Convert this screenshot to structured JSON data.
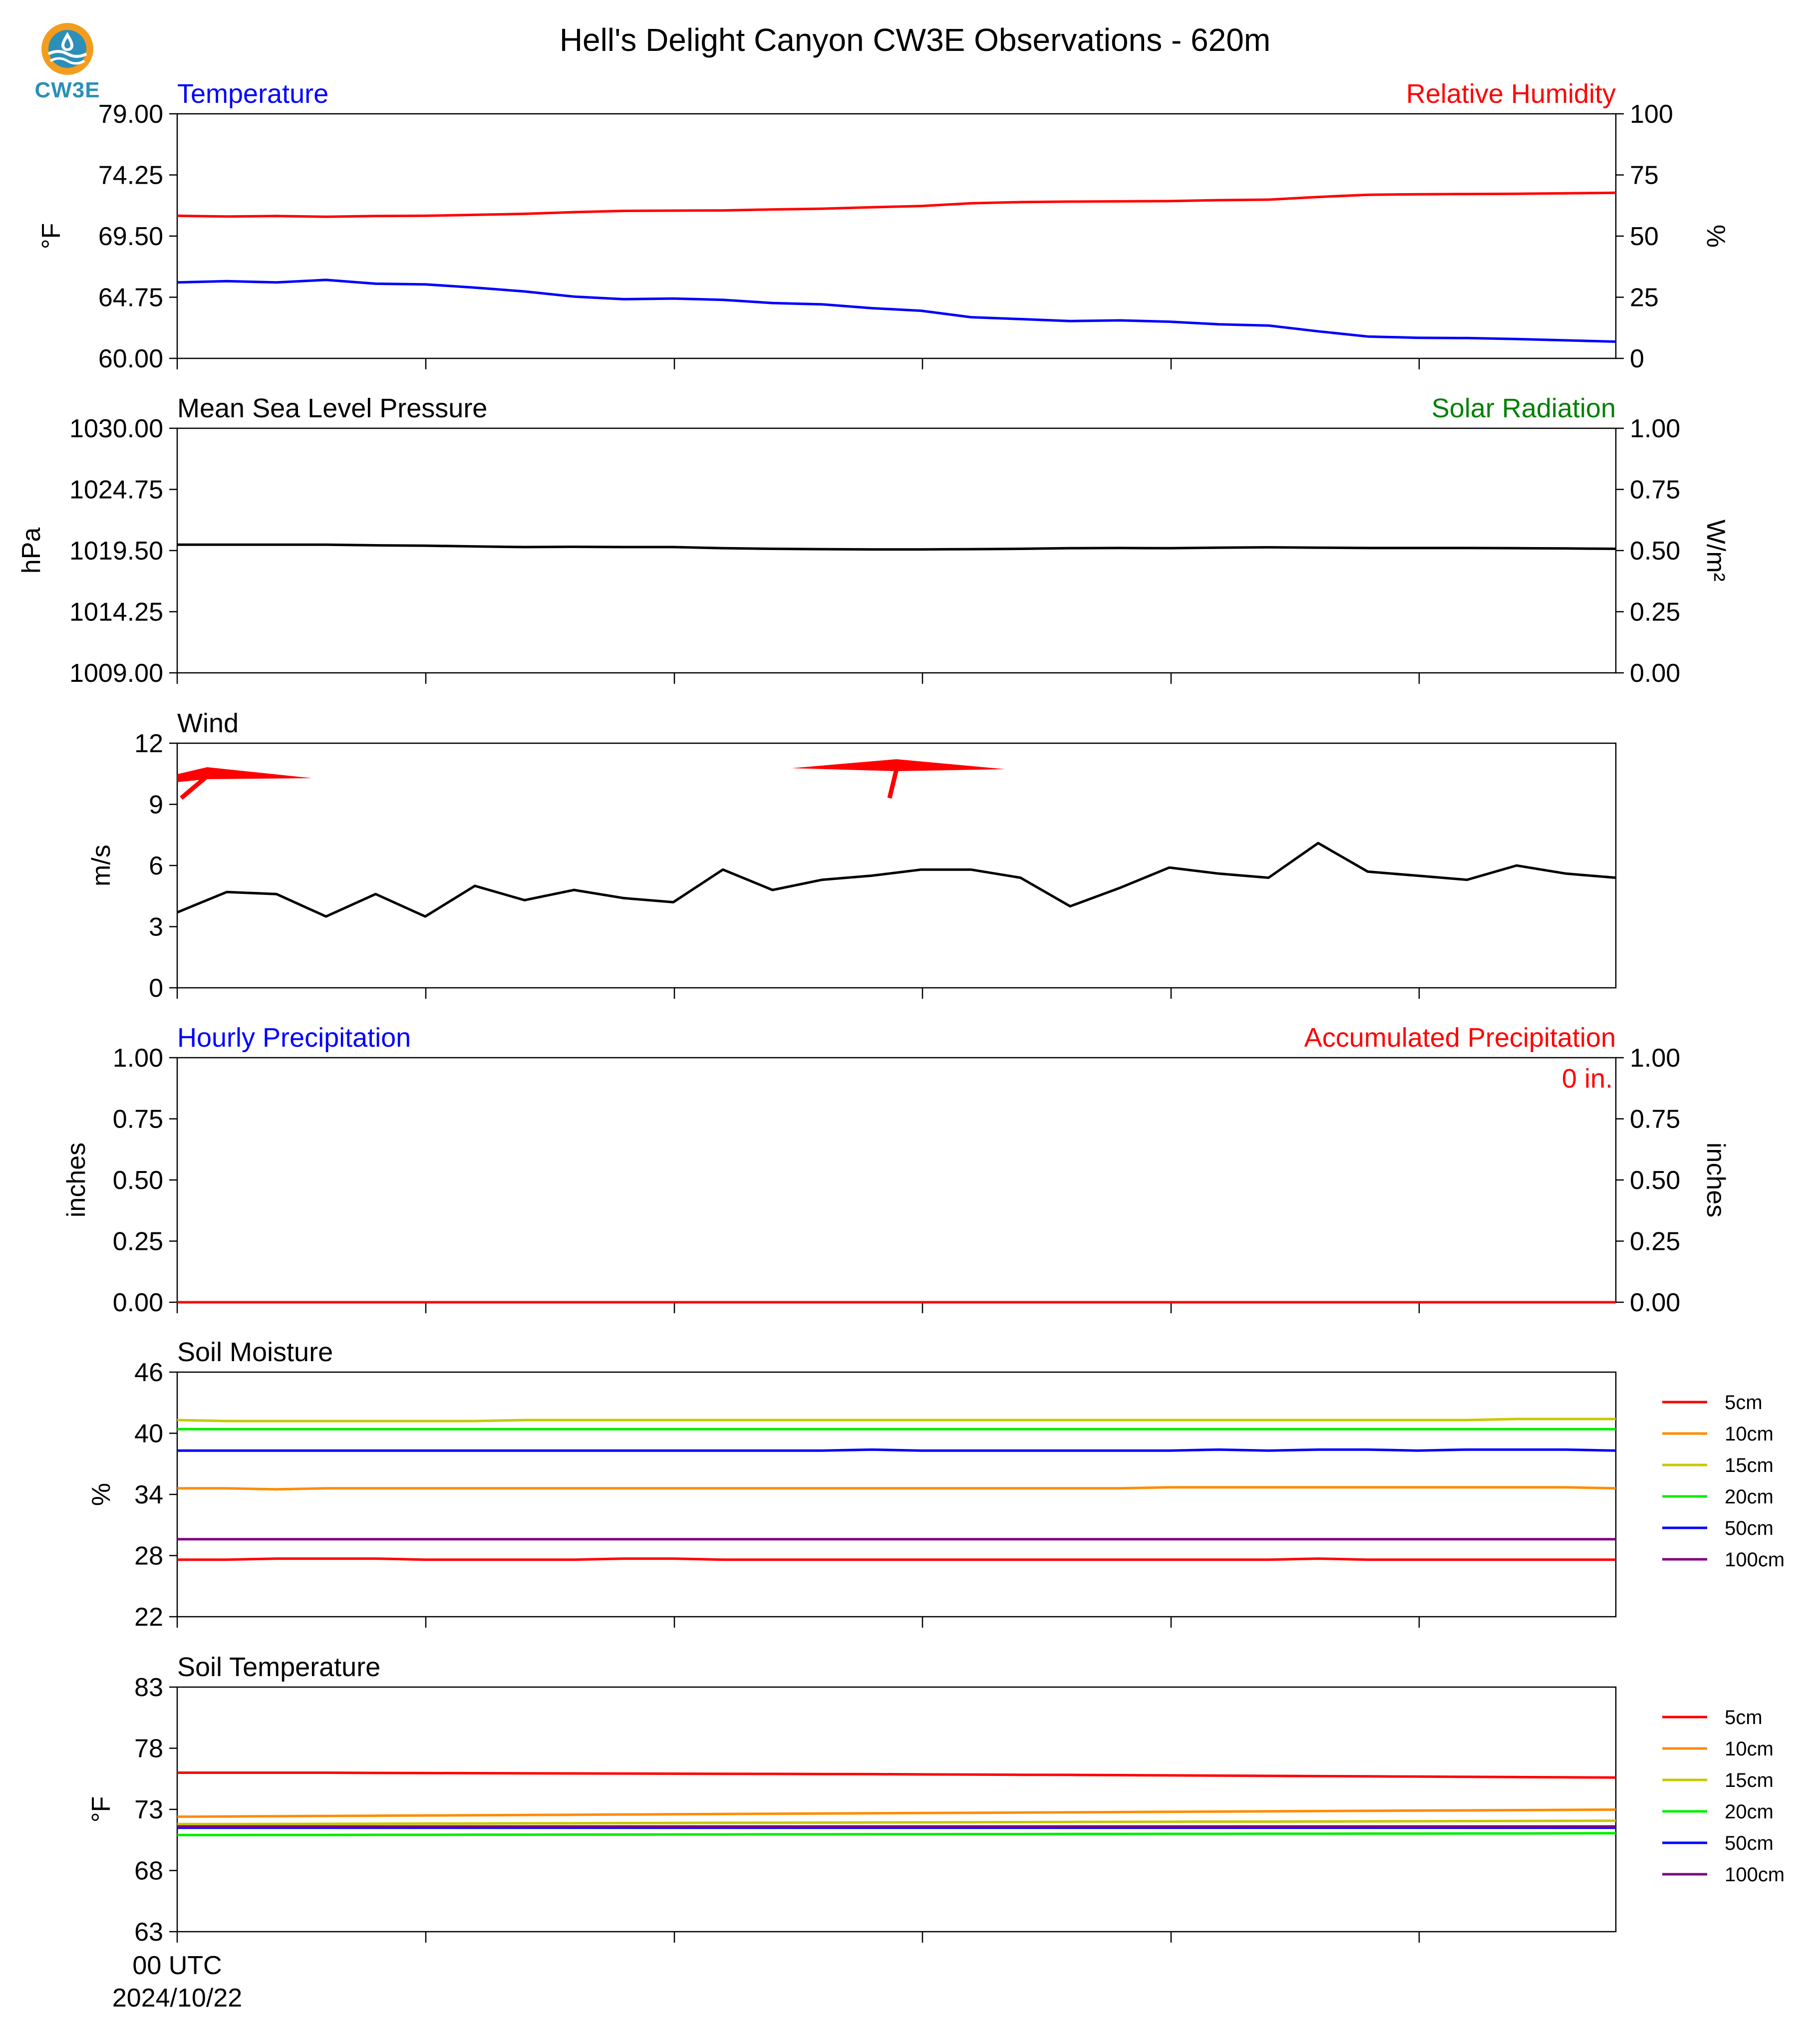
{
  "logo": {
    "text": "CW3E"
  },
  "title": "Hell's Delight Canyon CW3E Observations - 620m",
  "x_axis": {
    "first_tick_label_line1": "00 UTC",
    "first_tick_label_line2": "2024/10/22"
  },
  "chart_data": [
    {
      "id": "temperature",
      "type": "line",
      "title_left": "Temperature",
      "title_right": "Relative Humidity",
      "ylabel": "°F",
      "ylabel_right": "%",
      "ylim": [
        60,
        79
      ],
      "yticks": [
        "60.00",
        "64.75",
        "69.50",
        "74.25",
        "79.00"
      ],
      "ylim_right": [
        0,
        100
      ],
      "yticks_right": [
        "0",
        "25",
        "50",
        "75",
        "100"
      ],
      "x": [
        0,
        1,
        2,
        3,
        4,
        5,
        6,
        7,
        8,
        9,
        10,
        11,
        12,
        13,
        14,
        15,
        16,
        17,
        18,
        19,
        20,
        21,
        22,
        23,
        24,
        25,
        26,
        27,
        28,
        29
      ],
      "series": [
        {
          "name": "Temperature",
          "axis": "left",
          "color": "#0000ff",
          "values": [
            65.9,
            66.0,
            65.9,
            66.1,
            65.8,
            65.75,
            65.5,
            65.2,
            64.8,
            64.6,
            64.65,
            64.55,
            64.3,
            64.2,
            63.9,
            63.7,
            63.2,
            63.05,
            62.9,
            62.95,
            62.85,
            62.65,
            62.55,
            62.1,
            61.7,
            61.6,
            61.58,
            61.5,
            61.4,
            61.3
          ]
        },
        {
          "name": "Relative Humidity",
          "axis": "right",
          "color": "#ff0000",
          "values": [
            58.3,
            58.0,
            58.2,
            57.9,
            58.2,
            58.3,
            58.7,
            59.1,
            59.8,
            60.3,
            60.4,
            60.5,
            60.9,
            61.2,
            61.8,
            62.3,
            63.4,
            63.9,
            64.1,
            64.2,
            64.3,
            64.7,
            64.9,
            66.0,
            66.9,
            67.1,
            67.2,
            67.3,
            67.5,
            67.7
          ]
        }
      ]
    },
    {
      "id": "pressure",
      "type": "line",
      "title_left": "Mean Sea Level Pressure",
      "title_right": "Solar Radiation",
      "ylabel": "hPa",
      "ylabel_right": "W/m²",
      "ylim": [
        1009,
        1030
      ],
      "yticks": [
        "1009.00",
        "1014.25",
        "1019.50",
        "1024.75",
        "1030.00"
      ],
      "ylim_right": [
        0,
        1
      ],
      "yticks_right": [
        "0.00",
        "0.25",
        "0.50",
        "0.75",
        "1.00"
      ],
      "series": [
        {
          "name": "Mean Sea Level Pressure",
          "axis": "left",
          "color": "#000000",
          "values": [
            1020.0,
            1020.0,
            1020.0,
            1020.0,
            1019.95,
            1019.92,
            1019.85,
            1019.8,
            1019.82,
            1019.8,
            1019.8,
            1019.7,
            1019.65,
            1019.62,
            1019.6,
            1019.6,
            1019.62,
            1019.65,
            1019.7,
            1019.72,
            1019.7,
            1019.75,
            1019.78,
            1019.75,
            1019.72,
            1019.72,
            1019.72,
            1019.7,
            1019.68,
            1019.65
          ]
        }
      ]
    },
    {
      "id": "wind",
      "type": "line",
      "title_left": "Wind",
      "ylabel": "m/s",
      "ylim": [
        0,
        12
      ],
      "yticks": [
        "0",
        "3",
        "6",
        "9",
        "12"
      ],
      "series": [
        {
          "name": "Wind",
          "axis": "left",
          "color": "#000000",
          "values": [
            3.7,
            4.7,
            4.6,
            3.5,
            4.6,
            3.5,
            5.0,
            4.3,
            4.8,
            4.4,
            4.2,
            5.8,
            4.8,
            5.3,
            5.5,
            5.8,
            5.8,
            5.4,
            4.0,
            4.9,
            5.9,
            5.6,
            5.4,
            7.1,
            5.7,
            5.5,
            5.3,
            6.0,
            5.6,
            5.4
          ]
        }
      ],
      "barbs": [
        {
          "x": 0,
          "color": "#ff0000"
        },
        {
          "x": 14.5,
          "color": "#ff0000"
        }
      ]
    },
    {
      "id": "precipitation",
      "type": "line",
      "title_left": "Hourly Precipitation",
      "title_right": "Accumulated Precipitation",
      "annotation": "0 in.",
      "ylabel": "inches",
      "ylabel_right": "inches",
      "ylim": [
        0,
        1
      ],
      "yticks": [
        "0.00",
        "0.25",
        "0.50",
        "0.75",
        "1.00"
      ],
      "ylim_right": [
        0,
        1
      ],
      "yticks_right": [
        "0.00",
        "0.25",
        "0.50",
        "0.75",
        "1.00"
      ],
      "series": [
        {
          "name": "Hourly Precipitation",
          "axis": "left",
          "color": "#0000ff",
          "values": [
            0,
            0,
            0,
            0,
            0,
            0,
            0,
            0,
            0,
            0,
            0,
            0,
            0,
            0,
            0,
            0,
            0,
            0,
            0,
            0,
            0,
            0,
            0,
            0,
            0,
            0,
            0,
            0,
            0,
            0
          ]
        },
        {
          "name": "Accumulated Precipitation",
          "axis": "right",
          "color": "#ff0000",
          "values": [
            0,
            0,
            0,
            0,
            0,
            0,
            0,
            0,
            0,
            0,
            0,
            0,
            0,
            0,
            0,
            0,
            0,
            0,
            0,
            0,
            0,
            0,
            0,
            0,
            0,
            0,
            0,
            0,
            0,
            0
          ]
        }
      ]
    },
    {
      "id": "soil_moisture",
      "type": "line",
      "title_left": "Soil Moisture",
      "ylabel": "%",
      "ylim": [
        22,
        46
      ],
      "yticks": [
        "22",
        "28",
        "34",
        "40",
        "46"
      ],
      "legend": "right",
      "series": [
        {
          "name": "5cm",
          "color": "#ff0000",
          "values": [
            27.6,
            27.6,
            27.7,
            27.7,
            27.7,
            27.6,
            27.6,
            27.6,
            27.6,
            27.7,
            27.7,
            27.6,
            27.6,
            27.6,
            27.6,
            27.6,
            27.6,
            27.6,
            27.6,
            27.6,
            27.6,
            27.6,
            27.6,
            27.7,
            27.6,
            27.6,
            27.6,
            27.6,
            27.6,
            27.6
          ]
        },
        {
          "name": "10cm",
          "color": "#ff8c00",
          "values": [
            34.6,
            34.6,
            34.5,
            34.6,
            34.6,
            34.6,
            34.6,
            34.6,
            34.6,
            34.6,
            34.6,
            34.6,
            34.6,
            34.6,
            34.6,
            34.6,
            34.6,
            34.6,
            34.6,
            34.6,
            34.7,
            34.7,
            34.7,
            34.7,
            34.7,
            34.7,
            34.7,
            34.7,
            34.7,
            34.6
          ]
        },
        {
          "name": "15cm",
          "color": "#c8c800",
          "values": [
            41.3,
            41.2,
            41.2,
            41.2,
            41.2,
            41.2,
            41.2,
            41.3,
            41.3,
            41.3,
            41.3,
            41.3,
            41.3,
            41.3,
            41.3,
            41.3,
            41.3,
            41.3,
            41.3,
            41.3,
            41.3,
            41.3,
            41.3,
            41.3,
            41.3,
            41.3,
            41.3,
            41.4,
            41.4,
            41.4
          ]
        },
        {
          "name": "20cm",
          "color": "#00ee00",
          "values": [
            40.4,
            40.4,
            40.4,
            40.4,
            40.4,
            40.4,
            40.4,
            40.4,
            40.4,
            40.4,
            40.4,
            40.4,
            40.4,
            40.4,
            40.4,
            40.4,
            40.4,
            40.4,
            40.4,
            40.4,
            40.4,
            40.4,
            40.4,
            40.4,
            40.4,
            40.4,
            40.4,
            40.4,
            40.4,
            40.4
          ]
        },
        {
          "name": "50cm",
          "color": "#0000ff",
          "values": [
            38.3,
            38.3,
            38.3,
            38.3,
            38.3,
            38.3,
            38.3,
            38.3,
            38.3,
            38.3,
            38.3,
            38.3,
            38.3,
            38.3,
            38.4,
            38.3,
            38.3,
            38.3,
            38.3,
            38.3,
            38.3,
            38.4,
            38.3,
            38.4,
            38.4,
            38.3,
            38.4,
            38.4,
            38.4,
            38.3
          ]
        },
        {
          "name": "100cm",
          "color": "#800080",
          "values": [
            29.6,
            29.6,
            29.6,
            29.6,
            29.6,
            29.6,
            29.6,
            29.6,
            29.6,
            29.6,
            29.6,
            29.6,
            29.6,
            29.6,
            29.6,
            29.6,
            29.6,
            29.6,
            29.6,
            29.6,
            29.6,
            29.6,
            29.6,
            29.6,
            29.6,
            29.6,
            29.6,
            29.6,
            29.6,
            29.6
          ]
        }
      ]
    },
    {
      "id": "soil_temperature",
      "type": "line",
      "title_left": "Soil Temperature",
      "ylabel": "°F",
      "ylim": [
        63,
        83
      ],
      "yticks": [
        "63",
        "68",
        "73",
        "78",
        "83"
      ],
      "legend": "right",
      "series": [
        {
          "name": "5cm",
          "color": "#ff0000",
          "values": [
            76.0,
            76.0,
            76.0,
            76.0,
            75.98,
            75.97,
            75.96,
            75.95,
            75.94,
            75.93,
            75.92,
            75.91,
            75.9,
            75.89,
            75.88,
            75.86,
            75.85,
            75.83,
            75.82,
            75.8,
            75.78,
            75.76,
            75.74,
            75.72,
            75.7,
            75.68,
            75.66,
            75.64,
            75.62,
            75.6
          ]
        },
        {
          "name": "10cm",
          "color": "#ff8c00",
          "values": [
            72.4,
            72.42,
            72.44,
            72.46,
            72.48,
            72.5,
            72.52,
            72.54,
            72.56,
            72.58,
            72.6,
            72.62,
            72.64,
            72.66,
            72.68,
            72.7,
            72.72,
            72.74,
            72.76,
            72.78,
            72.8,
            72.82,
            72.84,
            72.86,
            72.88,
            72.9,
            72.92,
            72.94,
            72.96,
            72.98
          ]
        },
        {
          "name": "15cm",
          "color": "#c8c800",
          "values": [
            71.8,
            71.8,
            71.81,
            71.82,
            71.83,
            71.84,
            71.85,
            71.86,
            71.87,
            71.88,
            71.89,
            71.9,
            71.91,
            71.92,
            71.93,
            71.94,
            71.95,
            71.96,
            71.97,
            71.98,
            71.99,
            72.0,
            72.0,
            72.01,
            72.02,
            72.03,
            72.04,
            72.05,
            72.06,
            72.07
          ]
        },
        {
          "name": "20cm",
          "color": "#00ee00",
          "values": [
            70.9,
            70.9,
            70.91,
            70.91,
            70.92,
            70.92,
            70.93,
            70.93,
            70.94,
            70.94,
            70.95,
            70.95,
            70.96,
            70.96,
            70.97,
            70.97,
            70.98,
            70.98,
            70.99,
            70.99,
            71.0,
            71.0,
            71.01,
            71.01,
            71.02,
            71.02,
            71.03,
            71.03,
            71.04,
            71.05
          ]
        },
        {
          "name": "50cm",
          "color": "#0000ff",
          "values": [
            71.5,
            71.5,
            71.5,
            71.5,
            71.5,
            71.5,
            71.5,
            71.5,
            71.5,
            71.5,
            71.5,
            71.5,
            71.5,
            71.5,
            71.5,
            71.5,
            71.5,
            71.5,
            71.5,
            71.5,
            71.5,
            71.5,
            71.5,
            71.5,
            71.5,
            71.5,
            71.5,
            71.5,
            71.5,
            71.5
          ]
        },
        {
          "name": "100cm",
          "color": "#800080",
          "values": [
            71.6,
            71.6,
            71.6,
            71.6,
            71.6,
            71.6,
            71.6,
            71.6,
            71.6,
            71.6,
            71.6,
            71.6,
            71.6,
            71.6,
            71.6,
            71.6,
            71.6,
            71.6,
            71.6,
            71.6,
            71.6,
            71.6,
            71.6,
            71.6,
            71.6,
            71.6,
            71.6,
            71.6,
            71.6,
            71.6
          ]
        }
      ]
    }
  ]
}
